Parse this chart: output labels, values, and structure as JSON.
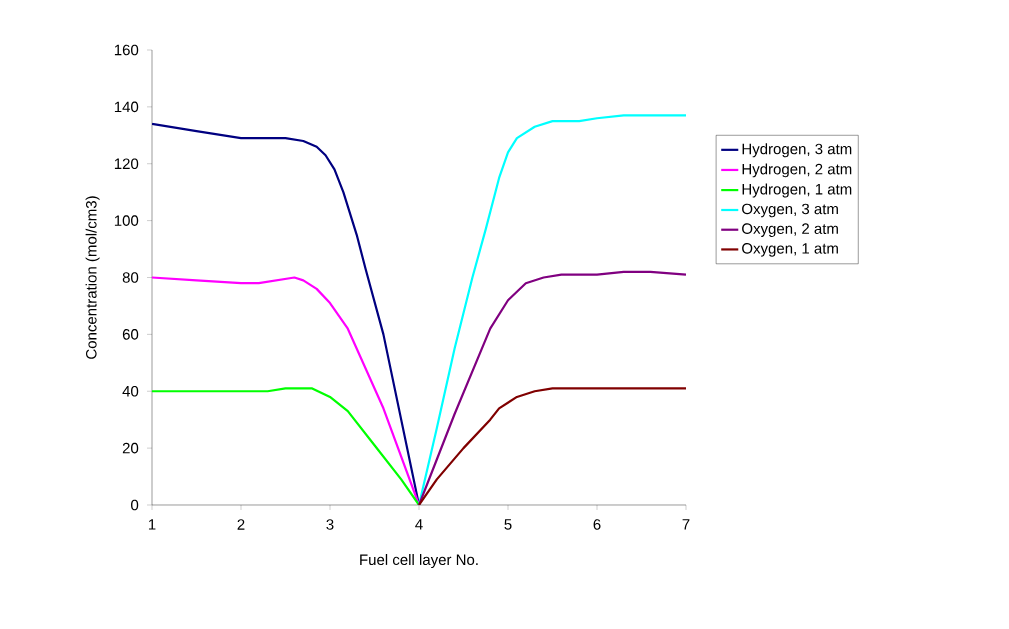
{
  "chart_data": {
    "type": "line",
    "xlabel": "Fuel cell layer No.",
    "ylabel": "Concentration (mol/cm3)",
    "xlim": [
      1,
      7
    ],
    "xticks": [
      1,
      2,
      3,
      4,
      5,
      6,
      7
    ],
    "ylim": [
      0,
      160
    ],
    "yticks": [
      0,
      20,
      40,
      60,
      80,
      100,
      120,
      140,
      160
    ],
    "grid": false,
    "legend": "right",
    "marker": "none",
    "line_style": "solid",
    "series": [
      {
        "name": "Hydrogen, 3 atm",
        "color": "#000080",
        "x": [
          1,
          1.5,
          2,
          2.5,
          2.7,
          2.85,
          2.95,
          3.05,
          3.15,
          3.3,
          3.4,
          3.6,
          3.8,
          4
        ],
        "values": [
          134,
          131.5,
          129,
          129,
          128,
          126,
          123,
          118,
          110,
          95,
          83,
          60,
          30,
          0
        ]
      },
      {
        "name": "Hydrogen, 2 atm",
        "color": "#ff00ff",
        "x": [
          1,
          1.5,
          2,
          2.2,
          2.4,
          2.6,
          2.7,
          2.85,
          3,
          3.2,
          3.4,
          3.6,
          3.8,
          4
        ],
        "values": [
          80,
          79,
          78,
          78,
          79,
          80,
          79,
          76,
          71,
          62,
          48,
          34,
          17,
          0
        ]
      },
      {
        "name": "Hydrogen, 1 atm",
        "color": "#00ff00",
        "x": [
          1,
          2,
          2.3,
          2.5,
          2.8,
          3,
          3.2,
          3.5,
          3.8,
          4
        ],
        "values": [
          40,
          40,
          40,
          41,
          41,
          38,
          33,
          21,
          9,
          0
        ]
      },
      {
        "name": "Oxygen, 3 atm",
        "color": "#00ffff",
        "x": [
          4,
          4.2,
          4.4,
          4.6,
          4.75,
          4.9,
          5,
          5.1,
          5.3,
          5.5,
          5.8,
          6,
          6.3,
          7
        ],
        "values": [
          0,
          27,
          55,
          80,
          97,
          115,
          124,
          129,
          133,
          135,
          135,
          136,
          137,
          137
        ]
      },
      {
        "name": "Oxygen, 2 atm",
        "color": "#800080",
        "x": [
          4,
          4.2,
          4.4,
          4.6,
          4.8,
          5,
          5.2,
          5.4,
          5.6,
          6,
          6.3,
          6.6,
          7
        ],
        "values": [
          0,
          16,
          32,
          47,
          62,
          72,
          78,
          80,
          81,
          81,
          82,
          82,
          81
        ]
      },
      {
        "name": "Oxygen, 1 atm",
        "color": "#800000",
        "x": [
          4,
          4.2,
          4.5,
          4.8,
          4.9,
          5.1,
          5.3,
          5.5,
          6,
          7
        ],
        "values": [
          0,
          9,
          20,
          30,
          34,
          38,
          40,
          41,
          41,
          41
        ]
      }
    ]
  }
}
